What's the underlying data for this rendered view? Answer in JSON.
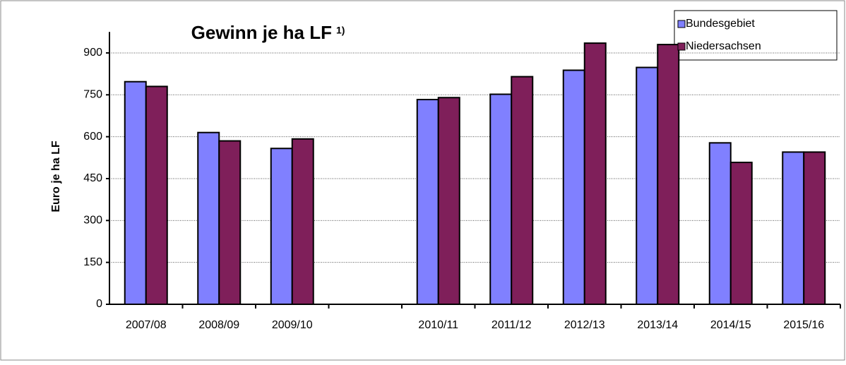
{
  "chart_data": {
    "type": "bar",
    "title": "Gewinn je ha LF",
    "title_note": "1)",
    "y_label": "Euro je ha LF",
    "categories": [
      "2007/08",
      "2008/09",
      "2009/10",
      null,
      "2010/11",
      "2011/12",
      "2012/13",
      "2013/14",
      "2014/15",
      "2015/16"
    ],
    "series": [
      {
        "name": "Bundesgebiet",
        "color": "#8080ff",
        "values": [
          797,
          615,
          558,
          null,
          733,
          752,
          838,
          848,
          578,
          545
        ]
      },
      {
        "name": "Niedersachsen",
        "color": "#7f1f5a",
        "values": [
          780,
          585,
          592,
          null,
          740,
          815,
          935,
          930,
          508,
          545
        ]
      }
    ],
    "ylim": [
      0,
      975
    ],
    "yticks": [
      0,
      150,
      300,
      450,
      600,
      750,
      900
    ],
    "grid": true,
    "legend": "top-right"
  }
}
